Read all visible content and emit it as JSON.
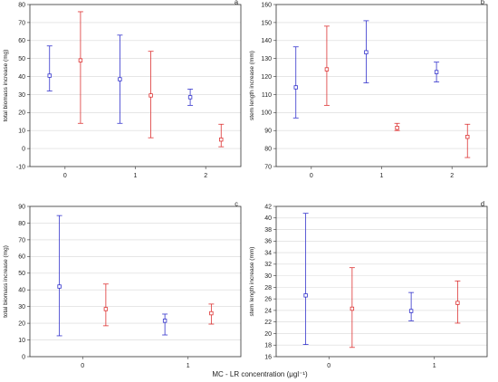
{
  "chart_data": [
    {
      "type": "errorbar",
      "panel_label": "a",
      "ylabel": "total biomass increase (mg)",
      "ylim": [
        -10,
        80
      ],
      "yticks": [
        -10,
        0,
        10,
        20,
        30,
        40,
        50,
        60,
        70,
        80
      ],
      "categories": [
        "0",
        "1",
        "2"
      ],
      "grid": true,
      "series": [
        {
          "color": "#3333cc",
          "values": [
            40.5,
            38.5,
            28.5
          ],
          "lower": [
            32,
            14,
            24
          ],
          "upper": [
            57,
            63,
            33
          ]
        },
        {
          "color": "#dd3333",
          "values": [
            49,
            29.5,
            5
          ],
          "lower": [
            14,
            6,
            1
          ],
          "upper": [
            76,
            54,
            13.5
          ]
        }
      ]
    },
    {
      "type": "errorbar",
      "panel_label": "b",
      "ylabel": "stem length increase (mm)",
      "ylim": [
        70,
        160
      ],
      "yticks": [
        70,
        80,
        90,
        100,
        110,
        120,
        130,
        140,
        150,
        160
      ],
      "categories": [
        "0",
        "1",
        "2"
      ],
      "grid": true,
      "series": [
        {
          "color": "#3333cc",
          "values": [
            114,
            133.5,
            122.5
          ],
          "lower": [
            97,
            116.5,
            117
          ],
          "upper": [
            136.5,
            151,
            128
          ]
        },
        {
          "color": "#dd3333",
          "values": [
            124,
            91.5,
            86.5
          ],
          "lower": [
            104,
            90,
            75
          ],
          "upper": [
            148,
            94,
            93.5
          ]
        }
      ]
    },
    {
      "type": "errorbar",
      "panel_label": "c",
      "ylabel": "total biomass increase (mg)",
      "ylim": [
        0,
        90
      ],
      "yticks": [
        0,
        10,
        20,
        30,
        40,
        50,
        60,
        70,
        80,
        90
      ],
      "categories": [
        "0",
        "1"
      ],
      "grid": true,
      "series": [
        {
          "color": "#3333cc",
          "values": [
            42,
            21.5
          ],
          "lower": [
            12.5,
            13
          ],
          "upper": [
            84.5,
            25.5
          ]
        },
        {
          "color": "#dd3333",
          "values": [
            28.5,
            26
          ],
          "lower": [
            18.5,
            19.5
          ],
          "upper": [
            43.5,
            31.5
          ]
        }
      ]
    },
    {
      "type": "errorbar",
      "panel_label": "d",
      "ylabel": "stem length increase (mm)",
      "ylim": [
        16,
        42
      ],
      "yticks": [
        16,
        18,
        20,
        22,
        24,
        26,
        28,
        30,
        32,
        34,
        36,
        38,
        40,
        42
      ],
      "categories": [
        "0",
        "1"
      ],
      "grid": true,
      "series": [
        {
          "color": "#3333cc",
          "values": [
            26.6,
            23.9
          ],
          "lower": [
            18.1,
            22.2
          ],
          "upper": [
            40.8,
            27.1
          ]
        },
        {
          "color": "#dd3333",
          "values": [
            24.3,
            25.3
          ],
          "lower": [
            17.6,
            21.8
          ],
          "upper": [
            31.4,
            29.1
          ]
        }
      ]
    }
  ],
  "xlabel": "MC - LR concentration (μgl⁻¹)"
}
